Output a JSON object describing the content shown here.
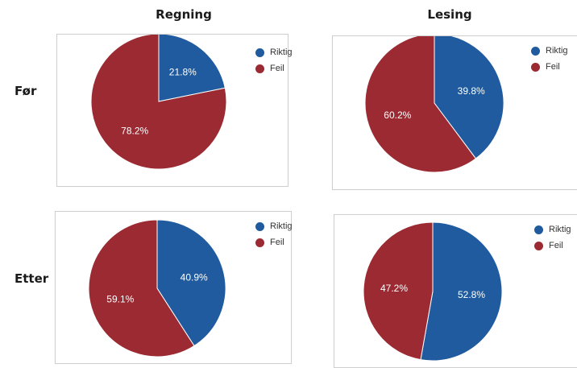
{
  "columns": [
    "Regning",
    "Lesing"
  ],
  "rows": [
    "Før",
    "Etter"
  ],
  "colors": {
    "riktig": "#1f5b9e",
    "feil": "#9b2a32"
  },
  "chart_data": [
    {
      "type": "pie",
      "row": "Før",
      "column": "Regning",
      "labels": [
        "Riktig",
        "Feil"
      ],
      "values": [
        21.8,
        78.2
      ],
      "value_labels": [
        "21.8%",
        "78.2%"
      ]
    },
    {
      "type": "pie",
      "row": "Før",
      "column": "Lesing",
      "labels": [
        "Riktig",
        "Feil"
      ],
      "values": [
        39.8,
        60.2
      ],
      "value_labels": [
        "39.8%",
        "60.2%"
      ]
    },
    {
      "type": "pie",
      "row": "Etter",
      "column": "Regning",
      "labels": [
        "Riktig",
        "Feil"
      ],
      "values": [
        40.9,
        59.1
      ],
      "value_labels": [
        "40.9%",
        "59.1%"
      ]
    },
    {
      "type": "pie",
      "row": "Etter",
      "column": "Lesing",
      "labels": [
        "Riktig",
        "Feil"
      ],
      "values": [
        52.8,
        47.2
      ],
      "value_labels": [
        "52.8%",
        "47.2%"
      ]
    }
  ]
}
